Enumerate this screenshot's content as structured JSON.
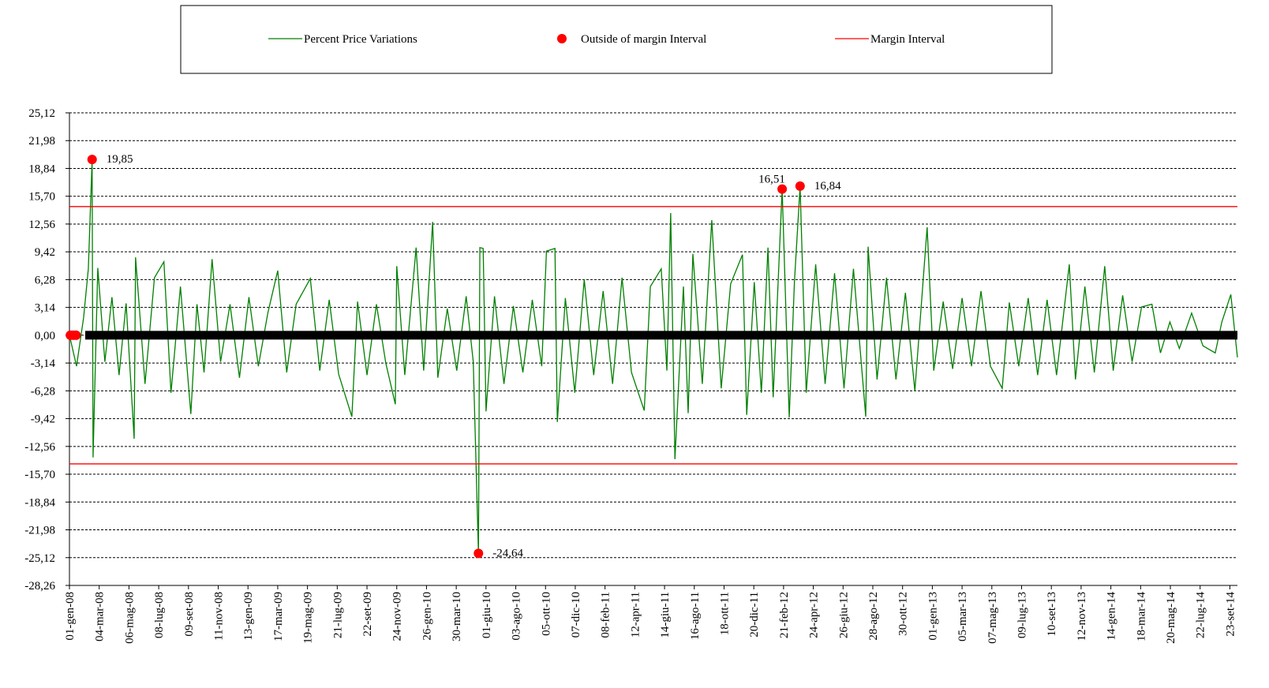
{
  "chart_data": {
    "type": "line",
    "series": [
      {
        "name": "Percent Price Variations",
        "color": "#008000",
        "kind": "line",
        "x": [
          0,
          15,
          30,
          40,
          48,
          50,
          60,
          75,
          90,
          105,
          120,
          137,
          140,
          160,
          180,
          200,
          215,
          235,
          257,
          270,
          285,
          302,
          320,
          340,
          360,
          380,
          400,
          420,
          441,
          460,
          480,
          510,
          530,
          550,
          570,
          598,
          610,
          630,
          650,
          670,
          690,
          693,
          710,
          734,
          750,
          769,
          780,
          800,
          820,
          840,
          855,
          866,
          869,
          876,
          882,
          900,
          920,
          940,
          960,
          980,
          1000,
          1010,
          1028,
          1033,
          1050,
          1070,
          1090,
          1110,
          1130,
          1150,
          1170,
          1190,
          1217,
          1230,
          1253,
          1265,
          1273,
          1282,
          1300,
          1310,
          1320,
          1340,
          1360,
          1380,
          1400,
          1425,
          1434,
          1450,
          1465,
          1479,
          1490,
          1509,
          1524,
          1535,
          1547,
          1560,
          1580,
          1600,
          1620,
          1640,
          1660,
          1686,
          1691,
          1710,
          1730,
          1750,
          1770,
          1790,
          1816,
          1830,
          1850,
          1870,
          1890,
          1910,
          1930,
          1950,
          1975,
          1990,
          2010,
          2030,
          2050,
          2070,
          2090,
          2117,
          2130,
          2150,
          2170,
          2192,
          2210,
          2230,
          2250,
          2270,
          2292,
          2310,
          2330,
          2350,
          2376,
          2400,
          2426,
          2440,
          2459,
          2473
        ],
        "values": [
          0,
          -3.5,
          2,
          7.5,
          19.85,
          -13.8,
          7.6,
          -3,
          4.3,
          -4.5,
          3.6,
          -11.7,
          8.8,
          -5.5,
          6.5,
          8.3,
          -6.5,
          5.5,
          -8.9,
          3.5,
          -4.2,
          8.6,
          -3,
          3.5,
          -4.8,
          4.3,
          -3.5,
          2.5,
          7.3,
          -4.2,
          3.5,
          6.4,
          -4,
          4,
          -4.4,
          -9.2,
          3.8,
          -4.5,
          3.5,
          -3.2,
          -7.8,
          7.8,
          -4.5,
          9.9,
          -4,
          12.8,
          -4.8,
          3,
          -4,
          4.4,
          -3,
          -24.64,
          9.9,
          9.8,
          -8.6,
          4.4,
          -5.5,
          3.3,
          -4.2,
          4,
          -3.5,
          9.5,
          9.8,
          -9.8,
          4.2,
          -6.5,
          6.3,
          -4.5,
          5,
          -5.5,
          6.5,
          -4.2,
          -8.5,
          5.5,
          7.5,
          -4,
          13.8,
          -14,
          5.5,
          -8.8,
          9.2,
          -5.5,
          13,
          -6,
          5.8,
          9.1,
          -9,
          6,
          -6.5,
          9.9,
          -7,
          16.51,
          -9.3,
          6,
          16.84,
          -6.5,
          8,
          -5.5,
          7,
          -6,
          7.5,
          -9.2,
          10,
          -5,
          6.5,
          -5,
          4.8,
          -6.3,
          12.2,
          -4,
          3.8,
          -3.8,
          4.2,
          -3.5,
          5,
          -3.5,
          -6,
          3.7,
          -3.5,
          4.2,
          -4.5,
          4,
          -4.5,
          8,
          -5,
          5.5,
          -4.2,
          7.8,
          -4,
          4.5,
          -3,
          3.2,
          3.5,
          -2,
          1.5,
          -1.5,
          2.5,
          -1.2,
          -2,
          1.5,
          4.6,
          -2.5
        ]
      },
      {
        "name": "Outside of margin Interval",
        "color": "#ff0000",
        "kind": "scatter",
        "x": [
          2,
          8,
          14,
          48,
          866,
          1509,
          1547
        ],
        "values": [
          0,
          0,
          0,
          19.85,
          -24.64,
          16.51,
          16.84
        ],
        "value_labels": [
          null,
          null,
          null,
          "19,85",
          "-24,64",
          "16,51",
          "16,84"
        ]
      },
      {
        "name": "Margin Interval",
        "color": "#ff0000",
        "kind": "hline",
        "values": [
          14.53,
          -14.53
        ]
      }
    ],
    "xlim": [
      0,
      2473
    ],
    "xticks": [
      {
        "value": 0,
        "label": "01-gen-08"
      },
      {
        "value": 63,
        "label": "04-mar-08"
      },
      {
        "value": 126,
        "label": "06-mag-08"
      },
      {
        "value": 189,
        "label": "08-lug-08"
      },
      {
        "value": 252,
        "label": "09-set-08"
      },
      {
        "value": 315,
        "label": "11-nov-08"
      },
      {
        "value": 378,
        "label": "13-gen-09"
      },
      {
        "value": 441,
        "label": "17-mar-09"
      },
      {
        "value": 504,
        "label": "19-mag-09"
      },
      {
        "value": 567,
        "label": "21-lug-09"
      },
      {
        "value": 630,
        "label": "22-set-09"
      },
      {
        "value": 693,
        "label": "24-nov-09"
      },
      {
        "value": 756,
        "label": "26-gen-10"
      },
      {
        "value": 819,
        "label": "30-mar-10"
      },
      {
        "value": 882,
        "label": "01-giu-10"
      },
      {
        "value": 945,
        "label": "03-ago-10"
      },
      {
        "value": 1008,
        "label": "05-ott-10"
      },
      {
        "value": 1071,
        "label": "07-dic-10"
      },
      {
        "value": 1134,
        "label": "08-feb-11"
      },
      {
        "value": 1197,
        "label": "12-apr-11"
      },
      {
        "value": 1260,
        "label": "14-giu-11"
      },
      {
        "value": 1323,
        "label": "16-ago-11"
      },
      {
        "value": 1386,
        "label": "18-ott-11"
      },
      {
        "value": 1449,
        "label": "20-dic-11"
      },
      {
        "value": 1512,
        "label": "21-feb-12"
      },
      {
        "value": 1575,
        "label": "24-apr-12"
      },
      {
        "value": 1638,
        "label": "26-giu-12"
      },
      {
        "value": 1701,
        "label": "28-ago-12"
      },
      {
        "value": 1764,
        "label": "30-ott-12"
      },
      {
        "value": 1827,
        "label": "01-gen-13"
      },
      {
        "value": 1890,
        "label": "05-mar-13"
      },
      {
        "value": 1953,
        "label": "07-mag-13"
      },
      {
        "value": 2016,
        "label": "09-lug-13"
      },
      {
        "value": 2079,
        "label": "10-set-13"
      },
      {
        "value": 2142,
        "label": "12-nov-13"
      },
      {
        "value": 2205,
        "label": "14-gen-14"
      },
      {
        "value": 2268,
        "label": "18-mar-14"
      },
      {
        "value": 2331,
        "label": "20-mag-14"
      },
      {
        "value": 2394,
        "label": "22-lug-14"
      },
      {
        "value": 2457,
        "label": "23-set-14"
      }
    ],
    "ylim": [
      -28.26,
      25.12
    ],
    "yticks": [
      {
        "value": 25.12,
        "label": "25,12"
      },
      {
        "value": 21.98,
        "label": "21,98"
      },
      {
        "value": 18.84,
        "label": "18,84"
      },
      {
        "value": 15.7,
        "label": "15,70"
      },
      {
        "value": 12.56,
        "label": "12,56"
      },
      {
        "value": 9.42,
        "label": "9,42"
      },
      {
        "value": 6.28,
        "label": "6,28"
      },
      {
        "value": 3.14,
        "label": "3,14"
      },
      {
        "value": 0,
        "label": "0,00"
      },
      {
        "value": -3.14,
        "label": "-3,14"
      },
      {
        "value": -6.28,
        "label": "-6,28"
      },
      {
        "value": -9.42,
        "label": "-9,42"
      },
      {
        "value": -12.56,
        "label": "-12,56"
      },
      {
        "value": -15.7,
        "label": "-15,70"
      },
      {
        "value": -18.84,
        "label": "-18,84"
      },
      {
        "value": -21.98,
        "label": "-21,98"
      },
      {
        "value": -25.12,
        "label": "-25,12"
      },
      {
        "value": -28.26,
        "label": "-28,26"
      }
    ],
    "grid": true
  }
}
